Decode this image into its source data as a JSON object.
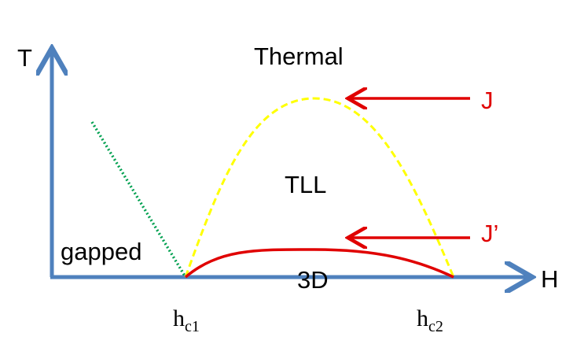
{
  "axes": {
    "y_label": "T",
    "x_label": "H"
  },
  "regions": {
    "thermal": "Thermal",
    "tll": "TLL",
    "gapped": "gapped",
    "three_d": "3D"
  },
  "arrows": {
    "upper": "J",
    "lower": "J’"
  },
  "ticks": [
    {
      "main": "h",
      "sub": "c1"
    },
    {
      "main": "h",
      "sub": "c2"
    }
  ]
}
